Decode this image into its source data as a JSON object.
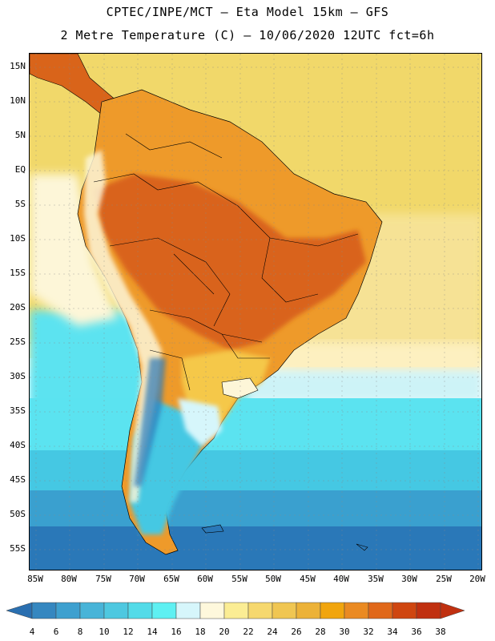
{
  "header": {
    "title_line1": "CPTEC/INPE/MCT –  Eta Model 15km – GFS",
    "title_line2": "2 Metre Temperature (C) – 10/06/2020 12UTC fct=6h"
  },
  "map": {
    "lat_labels": [
      "15N",
      "10N",
      "5N",
      "EQ",
      "5S",
      "10S",
      "15S",
      "20S",
      "25S",
      "30S",
      "35S",
      "40S",
      "45S",
      "50S",
      "55S"
    ],
    "lon_labels": [
      "85W",
      "80W",
      "75W",
      "70W",
      "65W",
      "60W",
      "55W",
      "50W",
      "45W",
      "40W",
      "35W",
      "30W",
      "25W",
      "20W"
    ],
    "colors": {
      "ocean_north": "#f1d86a",
      "land_hot": "#d9641a",
      "land_warm": "#ee9a2a",
      "land_mild": "#f5c84a",
      "andes_cold": "#fdf6d8",
      "ocean_south_1": "#5be3f0",
      "ocean_south_2": "#45c8e3",
      "ocean_south_3": "#3aa0cf",
      "ocean_south_4": "#2a78b8"
    }
  },
  "colorbar": {
    "labels": [
      "4",
      "6",
      "8",
      "10",
      "12",
      "14",
      "16",
      "18",
      "20",
      "22",
      "24",
      "26",
      "28",
      "30",
      "32",
      "34",
      "36",
      "38"
    ],
    "colors": [
      "#2a6fb0",
      "#3587c0",
      "#3ea0cf",
      "#48b4d8",
      "#4ec8e0",
      "#53dbe8",
      "#5ef0f2",
      "#d6f6fb",
      "#fef8dc",
      "#fbed94",
      "#f6d86e",
      "#f0c652",
      "#ecb238",
      "#f1a50e",
      "#ea8a22",
      "#e0681a",
      "#cf4610",
      "#c03010"
    ]
  }
}
